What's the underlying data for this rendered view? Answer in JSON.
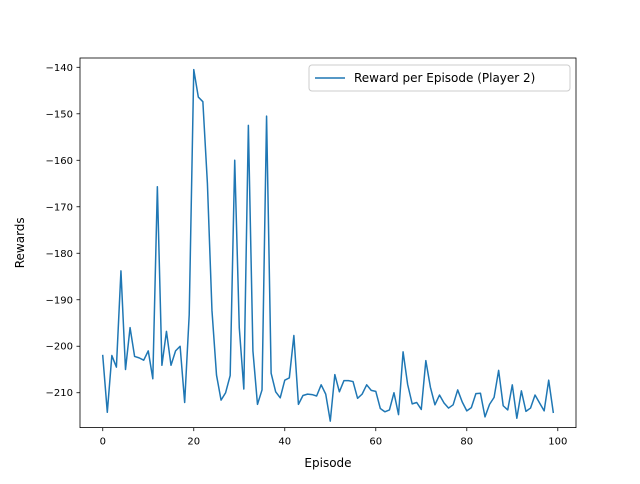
{
  "chart_data": {
    "type": "line",
    "title": "",
    "xlabel": "Episode",
    "ylabel": "Rewards",
    "xlim": [
      -5,
      104
    ],
    "ylim": [
      -217.5,
      -138
    ],
    "x_ticks": [
      0,
      20,
      40,
      60,
      80,
      100
    ],
    "y_ticks": [
      -210,
      -200,
      -190,
      -180,
      -170,
      -160,
      -150,
      -140
    ],
    "x_tick_labels": [
      "0",
      "20",
      "40",
      "60",
      "80",
      "100"
    ],
    "y_tick_labels": [
      "−210",
      "−200",
      "−190",
      "−180",
      "−170",
      "−160",
      "−150",
      "−140"
    ],
    "grid": false,
    "legend": {
      "location": "upper right",
      "entries": [
        "Reward per Episode (Player 2)"
      ]
    },
    "series": [
      {
        "name": "Reward per Episode (Player 2)",
        "color": "#1f77b4",
        "x": [
          0,
          1,
          2,
          3,
          4,
          5,
          6,
          7,
          8,
          9,
          10,
          11,
          12,
          13,
          14,
          15,
          16,
          17,
          18,
          19,
          20,
          21,
          22,
          23,
          24,
          25,
          26,
          27,
          28,
          29,
          30,
          31,
          32,
          33,
          34,
          35,
          36,
          37,
          38,
          39,
          40,
          41,
          42,
          43,
          44,
          45,
          46,
          47,
          48,
          49,
          50,
          51,
          52,
          53,
          54,
          55,
          56,
          57,
          58,
          59,
          60,
          61,
          62,
          63,
          64,
          65,
          66,
          67,
          68,
          69,
          70,
          71,
          72,
          73,
          74,
          75,
          76,
          77,
          78,
          79,
          80,
          81,
          82,
          83,
          84,
          85,
          86,
          87,
          88,
          89,
          90,
          91,
          92,
          93,
          94,
          95,
          96,
          97,
          98,
          99
        ],
        "y": [
          -202,
          -214.2,
          -202,
          -204.5,
          -183.8,
          -205,
          -196,
          -202.2,
          -202.5,
          -203,
          -201,
          -207,
          -165.7,
          -204.1,
          -196.8,
          -204.1,
          -201,
          -200,
          -212.1,
          -193.2,
          -140.5,
          -146.4,
          -147.4,
          -165,
          -192.3,
          -206.2,
          -211.6,
          -210,
          -206.3,
          -160,
          -196,
          -209.2,
          -152.5,
          -201,
          -212.5,
          -209.4,
          -150.5,
          -205.8,
          -209.8,
          -211.1,
          -207.3,
          -206.8,
          -197.7,
          -212.5,
          -210.6,
          -210.3,
          -210.4,
          -210.7,
          -208.3,
          -210.3,
          -216.1,
          -206.1,
          -209.8,
          -207.4,
          -207.4,
          -207.6,
          -211.2,
          -210.3,
          -208.3,
          -209.5,
          -209.7,
          -213.4,
          -214.1,
          -213.7,
          -210,
          -214.7,
          -201.2,
          -208.2,
          -212.4,
          -212.1,
          -213.6,
          -203.1,
          -208.8,
          -212.6,
          -210.5,
          -212.2,
          -213.3,
          -212.6,
          -209.4,
          -212,
          -213.9,
          -213.2,
          -210.2,
          -210.1,
          -215.2,
          -212.5,
          -211,
          -205.2,
          -212.8,
          -213.7,
          -208.3,
          -215.5,
          -209.6,
          -214,
          -213.3,
          -210.5,
          -212.2,
          -213.9,
          -207.3,
          -214.2
        ]
      }
    ]
  }
}
